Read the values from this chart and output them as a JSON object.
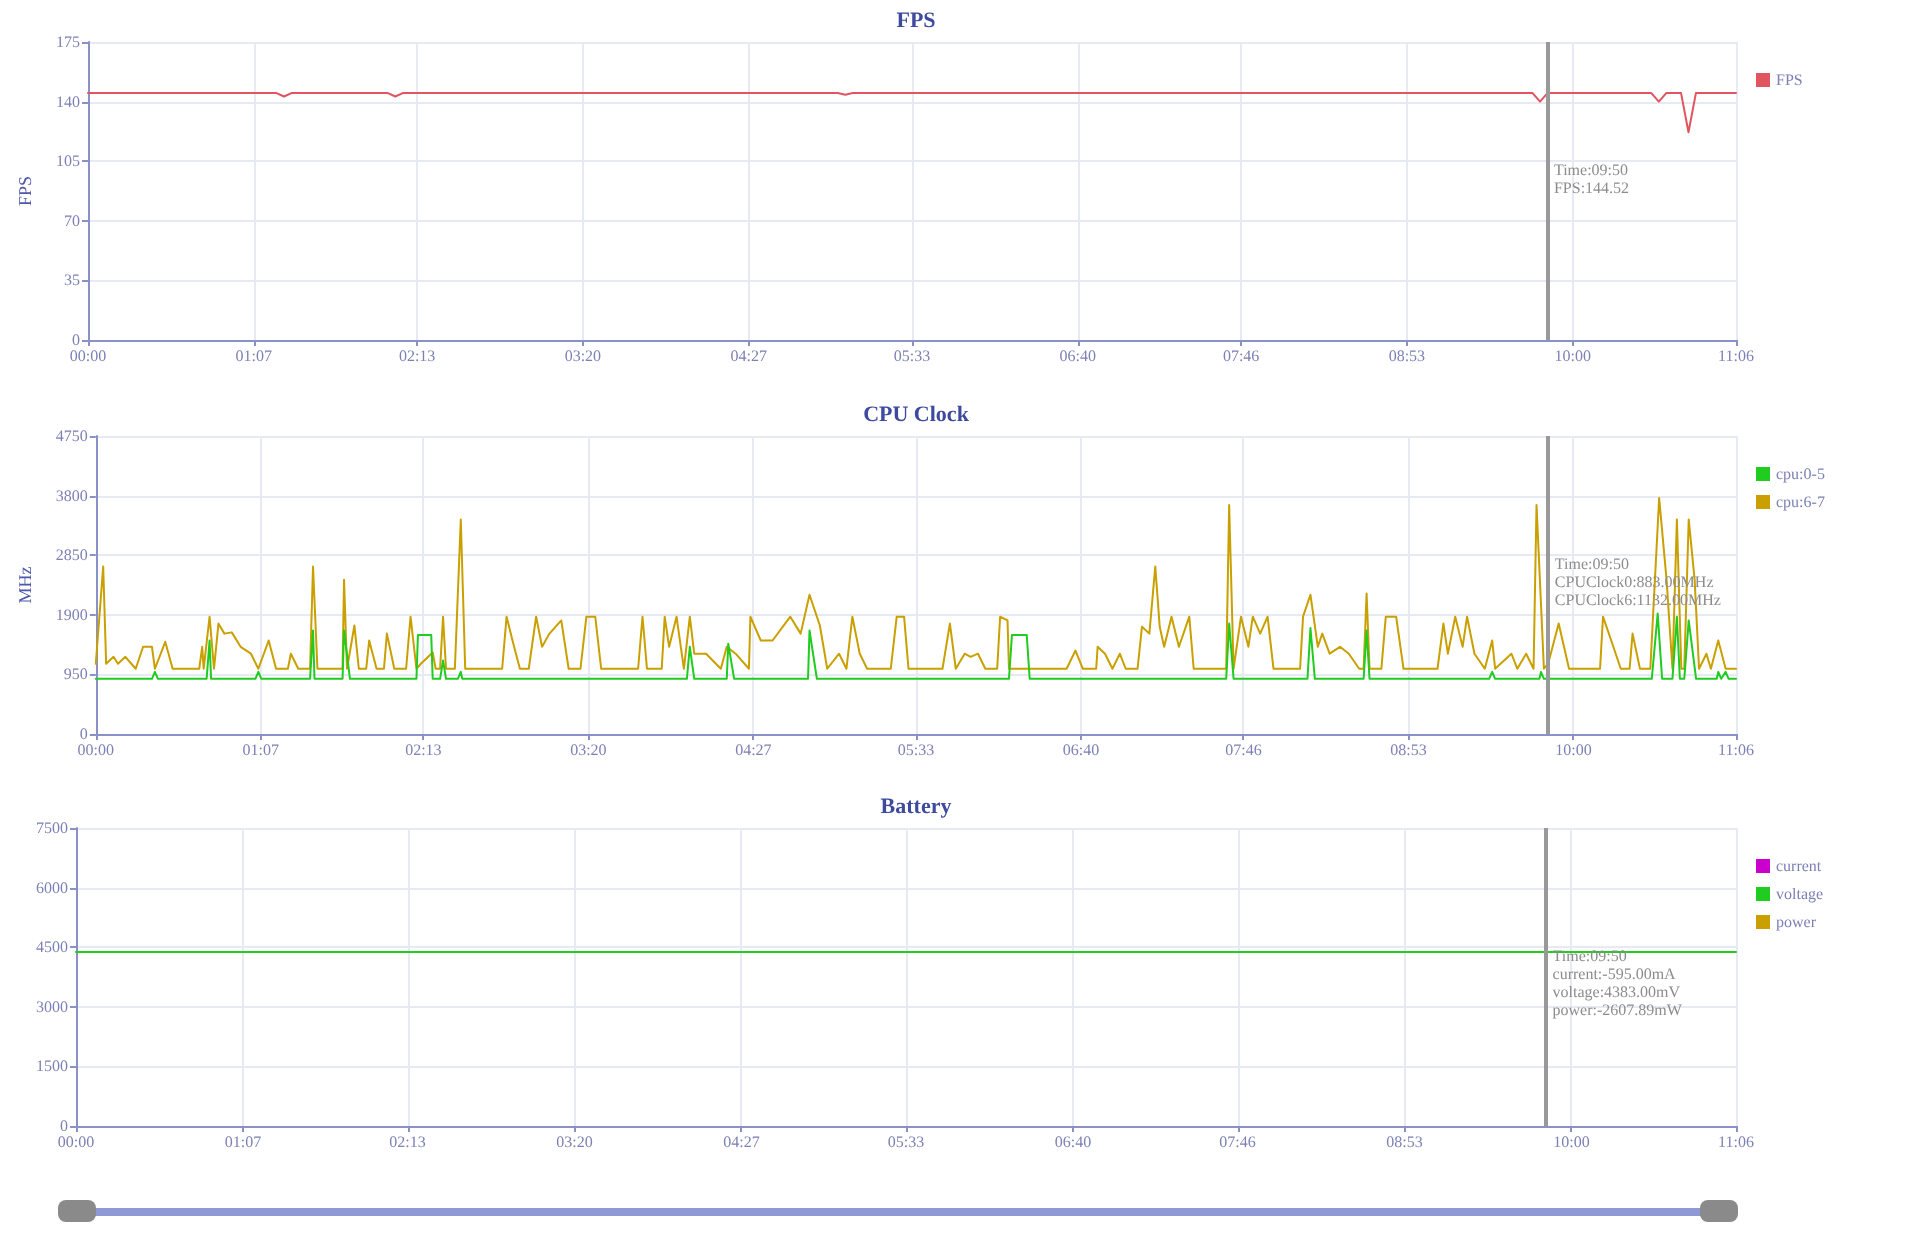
{
  "chart_data": [
    {
      "type": "line",
      "title": "FPS",
      "ylabel": "FPS",
      "xlim": [
        0,
        11.1
      ],
      "xticks": [
        {
          "value": 0,
          "label": "00:00"
        },
        {
          "value": 1.1167,
          "label": "01:07"
        },
        {
          "value": 2.2167,
          "label": "02:13"
        },
        {
          "value": 3.3333,
          "label": "03:20"
        },
        {
          "value": 4.45,
          "label": "04:27"
        },
        {
          "value": 5.55,
          "label": "05:33"
        },
        {
          "value": 6.6667,
          "label": "06:40"
        },
        {
          "value": 7.7667,
          "label": "07:46"
        },
        {
          "value": 8.8833,
          "label": "08:53"
        },
        {
          "value": 10,
          "label": "10:00"
        },
        {
          "value": 11.1,
          "label": "11:06"
        }
      ],
      "ylim": [
        0,
        175
      ],
      "yticks": [
        0,
        35,
        70,
        105,
        140,
        175
      ],
      "grid": true,
      "legend": "top right",
      "marker": "none",
      "series": [
        {
          "name": "FPS",
          "color": "#e05560",
          "x": [
            0,
            1.27,
            1.32,
            1.37,
            2.02,
            2.07,
            2.12,
            5.05,
            5.1,
            5.15,
            9.73,
            9.78,
            9.83,
            10.53,
            10.58,
            10.63,
            10.73,
            10.78,
            10.83,
            11.1
          ],
          "values": [
            145,
            145,
            143,
            145,
            145,
            143,
            145,
            145,
            144,
            145,
            145,
            140,
            145,
            145,
            140,
            145,
            145,
            122,
            145,
            145
          ]
        }
      ],
      "ref_lines": [
        {
          "axis": "x",
          "value": 9.8333,
          "color": "#999999"
        }
      ],
      "annotations": [
        "Time:09:50\nFPS:144.52"
      ]
    },
    {
      "type": "line",
      "title": "CPU Clock",
      "ylabel": "MHz",
      "xlim": [
        0,
        11.1
      ],
      "xticks": [
        {
          "value": 0,
          "label": "00:00"
        },
        {
          "value": 1.1167,
          "label": "01:07"
        },
        {
          "value": 2.2167,
          "label": "02:13"
        },
        {
          "value": 3.3333,
          "label": "03:20"
        },
        {
          "value": 4.45,
          "label": "04:27"
        },
        {
          "value": 5.55,
          "label": "05:33"
        },
        {
          "value": 6.6667,
          "label": "06:40"
        },
        {
          "value": 7.7667,
          "label": "07:46"
        },
        {
          "value": 8.8833,
          "label": "08:53"
        },
        {
          "value": 10,
          "label": "10:00"
        },
        {
          "value": 11.1,
          "label": "11:06"
        }
      ],
      "ylim": [
        0,
        4750
      ],
      "yticks": [
        0,
        950,
        1900,
        2850,
        3800,
        4750
      ],
      "grid": true,
      "legend": "top right",
      "marker": "none",
      "series": [
        {
          "name": "cpu:0-5",
          "color": "#1fcc1f",
          "x": [
            0,
            0.38,
            0.4,
            0.42,
            0.75,
            0.77,
            0.78,
            1.08,
            1.1,
            1.12,
            1.45,
            1.47,
            1.48,
            1.67,
            1.68,
            1.72,
            2.17,
            2.18,
            2.27,
            2.28,
            2.33,
            2.35,
            2.37,
            2.45,
            2.47,
            2.48,
            4,
            4.02,
            4.05,
            4.27,
            4.28,
            4.32,
            4.82,
            4.83,
            4.88,
            6.18,
            6.2,
            6.3,
            6.32,
            7.65,
            7.67,
            7.7,
            8.2,
            8.22,
            8.25,
            8.58,
            8.6,
            8.62,
            9.43,
            9.45,
            9.47,
            9.77,
            9.78,
            9.8,
            10.53,
            10.57,
            10.6,
            10.67,
            10.7,
            10.72,
            10.75,
            10.78,
            10.83,
            10.97,
            10.98,
            11,
            11.03,
            11.05,
            11.1
          ],
          "values": [
            880,
            880,
            990,
            880,
            880,
            1490,
            880,
            880,
            990,
            880,
            880,
            1650,
            880,
            880,
            1650,
            880,
            880,
            1580,
            1580,
            880,
            880,
            1170,
            880,
            880,
            990,
            880,
            880,
            1390,
            880,
            880,
            1440,
            880,
            880,
            1650,
            880,
            880,
            1580,
            1580,
            880,
            880,
            1760,
            880,
            880,
            1690,
            880,
            880,
            1650,
            880,
            880,
            990,
            880,
            880,
            990,
            880,
            880,
            1920,
            880,
            880,
            1870,
            880,
            880,
            1810,
            880,
            880,
            990,
            880,
            990,
            880,
            880
          ]
        },
        {
          "name": "cpu:6-7",
          "color": "#c9a000",
          "x": [
            0,
            0.05,
            0.07,
            0.12,
            0.15,
            0.2,
            0.27,
            0.32,
            0.38,
            0.4,
            0.47,
            0.52,
            0.7,
            0.72,
            0.73,
            0.77,
            0.8,
            0.83,
            0.87,
            0.92,
            0.98,
            1.05,
            1.1,
            1.17,
            1.22,
            1.3,
            1.32,
            1.37,
            1.45,
            1.47,
            1.5,
            1.67,
            1.68,
            1.7,
            1.75,
            1.78,
            1.83,
            1.85,
            1.9,
            1.95,
            1.97,
            2.02,
            2.1,
            2.13,
            2.17,
            2.2,
            2.28,
            2.3,
            2.33,
            2.35,
            2.37,
            2.43,
            2.47,
            2.5,
            2.75,
            2.78,
            2.82,
            2.87,
            2.93,
            2.98,
            3.02,
            3.07,
            3.15,
            3.2,
            3.28,
            3.32,
            3.38,
            3.42,
            3.67,
            3.7,
            3.73,
            3.83,
            3.85,
            3.88,
            3.93,
            3.98,
            4.02,
            4.05,
            4.13,
            4.23,
            4.27,
            4.33,
            4.42,
            4.43,
            4.5,
            4.58,
            4.7,
            4.77,
            4.83,
            4.9,
            4.95,
            5.03,
            5.08,
            5.12,
            5.17,
            5.22,
            5.38,
            5.42,
            5.47,
            5.5,
            5.73,
            5.78,
            5.82,
            5.88,
            5.92,
            5.97,
            6.02,
            6.1,
            6.12,
            6.17,
            6.18,
            6.57,
            6.63,
            6.68,
            6.77,
            6.78,
            6.83,
            6.88,
            6.93,
            6.97,
            7.05,
            7.08,
            7.13,
            7.17,
            7.2,
            7.23,
            7.28,
            7.33,
            7.4,
            7.43,
            7.65,
            7.67,
            7.7,
            7.75,
            7.8,
            7.83,
            7.88,
            7.93,
            7.97,
            8.15,
            8.17,
            8.22,
            8.27,
            8.3,
            8.35,
            8.42,
            8.48,
            8.55,
            8.58,
            8.6,
            8.62,
            8.7,
            8.73,
            8.8,
            8.85,
            9.08,
            9.12,
            9.15,
            9.2,
            9.25,
            9.28,
            9.33,
            9.4,
            9.45,
            9.47,
            9.58,
            9.62,
            9.68,
            9.73,
            9.75,
            9.8,
            9.83,
            9.9,
            9.97,
            10.18,
            10.2,
            10.27,
            10.32,
            10.38,
            10.4,
            10.45,
            10.52,
            10.53,
            10.58,
            10.63,
            10.67,
            10.7,
            10.73,
            10.75,
            10.78,
            10.82,
            10.85,
            10.9,
            10.93,
            10.98,
            11.03,
            11.1
          ],
          "values": [
            1120,
            2670,
            1120,
            1230,
            1120,
            1230,
            1040,
            1390,
            1390,
            1040,
            1470,
            1040,
            1040,
            1390,
            1040,
            1870,
            1040,
            1760,
            1600,
            1620,
            1390,
            1280,
            1040,
            1490,
            1040,
            1040,
            1280,
            1040,
            1040,
            2670,
            1040,
            1040,
            2460,
            1040,
            1730,
            1040,
            1040,
            1490,
            1040,
            1040,
            1600,
            1040,
            1040,
            1870,
            1040,
            1120,
            1300,
            1040,
            1040,
            1870,
            1040,
            1040,
            3420,
            1040,
            1040,
            1870,
            1490,
            1040,
            1040,
            1870,
            1390,
            1600,
            1810,
            1040,
            1040,
            1870,
            1870,
            1040,
            1040,
            1870,
            1040,
            1040,
            1870,
            1390,
            1870,
            1040,
            1870,
            1280,
            1280,
            1040,
            1390,
            1280,
            1040,
            1870,
            1490,
            1490,
            1870,
            1600,
            2220,
            1730,
            1040,
            1280,
            1040,
            1870,
            1280,
            1040,
            1040,
            1870,
            1870,
            1040,
            1040,
            1760,
            1040,
            1280,
            1230,
            1280,
            1040,
            1040,
            1870,
            1810,
            1040,
            1040,
            1330,
            1040,
            1040,
            1390,
            1280,
            1040,
            1280,
            1040,
            1040,
            1710,
            1600,
            2670,
            1710,
            1390,
            1870,
            1390,
            1870,
            1040,
            1040,
            3650,
            1040,
            1870,
            1390,
            1870,
            1600,
            1870,
            1040,
            1040,
            1870,
            2220,
            1390,
            1600,
            1280,
            1390,
            1280,
            1040,
            1040,
            2240,
            1040,
            1040,
            1870,
            1870,
            1040,
            1040,
            1760,
            1280,
            1870,
            1390,
            1870,
            1280,
            1040,
            1490,
            1040,
            1280,
            1040,
            1280,
            1040,
            3650,
            1040,
            1130,
            1760,
            1040,
            1040,
            1870,
            1390,
            1040,
            1040,
            1600,
            1040,
            1040,
            1490,
            3760,
            2460,
            1040,
            3420,
            1040,
            1040,
            3420,
            2460,
            1040,
            1280,
            1040,
            1490,
            1040,
            1040
          ]
        }
      ],
      "ref_lines": [
        {
          "axis": "x",
          "value": 9.8333,
          "color": "#999999"
        }
      ],
      "annotations": [
        "Time:09:50\nCPUClock0:883.00MHz\nCPUClock6:1132.00MHz"
      ]
    },
    {
      "type": "line",
      "title": "Battery",
      "xlim": [
        0,
        11.1
      ],
      "xticks": [
        {
          "value": 0,
          "label": "00:00"
        },
        {
          "value": 1.1167,
          "label": "01:07"
        },
        {
          "value": 2.2167,
          "label": "02:13"
        },
        {
          "value": 3.3333,
          "label": "03:20"
        },
        {
          "value": 4.45,
          "label": "04:27"
        },
        {
          "value": 5.55,
          "label": "05:33"
        },
        {
          "value": 6.6667,
          "label": "06:40"
        },
        {
          "value": 7.7667,
          "label": "07:46"
        },
        {
          "value": 8.8833,
          "label": "08:53"
        },
        {
          "value": 10,
          "label": "10:00"
        },
        {
          "value": 11.1,
          "label": "11:06"
        }
      ],
      "ylim": [
        0,
        7500
      ],
      "yticks": [
        0,
        1500,
        3000,
        4500,
        6000,
        7500
      ],
      "grid": true,
      "legend": "top right",
      "marker": "none",
      "series": [
        {
          "name": "current",
          "color": "#cc00cc"
        },
        {
          "name": "voltage",
          "color": "#1fcc1f",
          "x": [
            0,
            11.1
          ],
          "values": [
            4380,
            4380
          ]
        },
        {
          "name": "power",
          "color": "#c9a000"
        }
      ],
      "ref_lines": [
        {
          "axis": "x",
          "value": 9.8333,
          "color": "#999999"
        }
      ],
      "annotations": [
        "Time:09:50\ncurrent:-595.00mA\nvoltage:4383.00mV\npower:-2607.89mW"
      ]
    }
  ]
}
